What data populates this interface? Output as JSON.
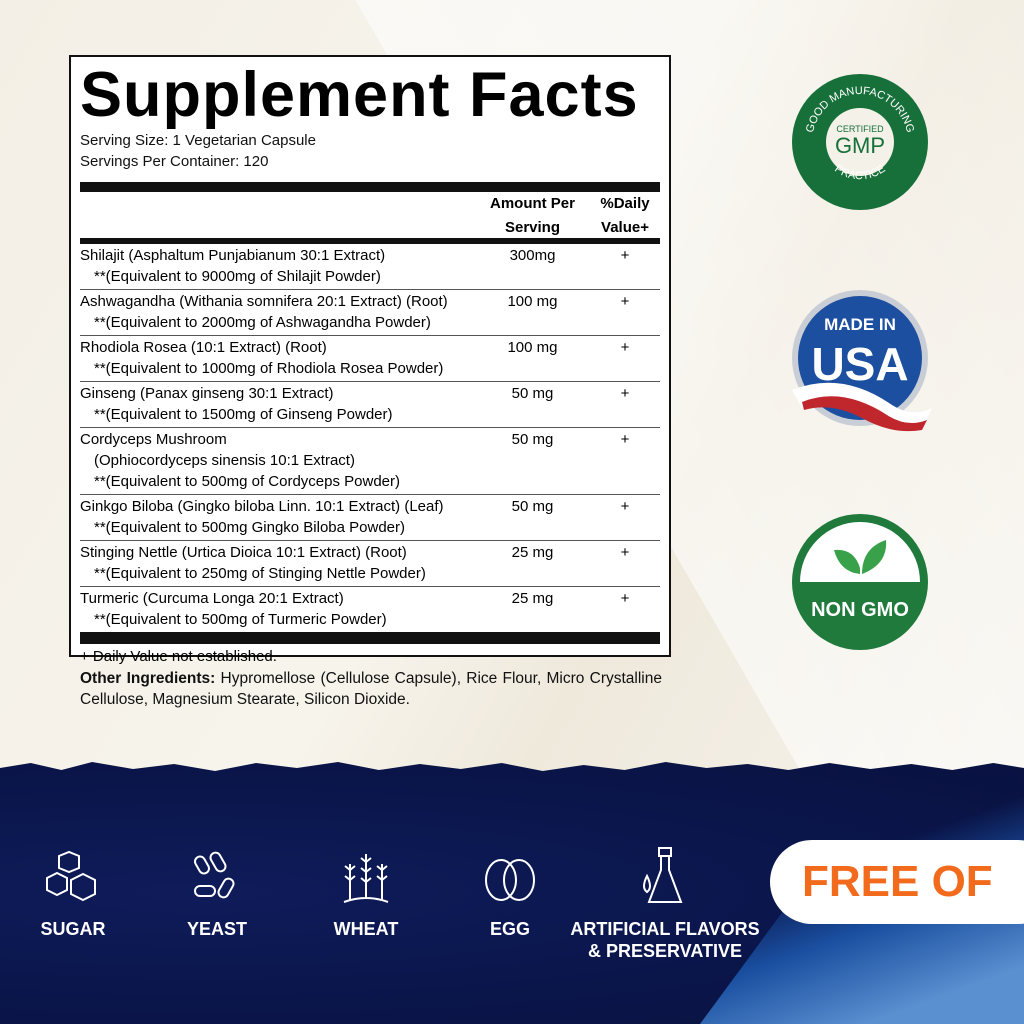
{
  "label": {
    "title": "Supplement Facts",
    "serving_size": "Serving Size: 1 Vegetarian Capsule",
    "servings_per_container": "Servings Per Container: 120",
    "header": {
      "amount_1": "Amount Per",
      "amount_2": "Serving",
      "dv_1": "%Daily",
      "dv_2": "Value+"
    },
    "rows": [
      {
        "lines": [
          "Shilajit (Asphaltum Punjabianum 30:1 Extract)",
          "**(Equivalent to 9000mg of Shilajit Powder)"
        ],
        "amount": "300mg",
        "dv": "+"
      },
      {
        "lines": [
          "Ashwagandha (Withania somnifera 20:1 Extract) (Root)",
          "**(Equivalent to 2000mg of Ashwagandha Powder)"
        ],
        "amount": "100 mg",
        "dv": "+"
      },
      {
        "lines": [
          "Rhodiola Rosea (10:1 Extract) (Root)",
          "**(Equivalent to 1000mg of Rhodiola Rosea Powder)"
        ],
        "amount": "100 mg",
        "dv": "+"
      },
      {
        "lines": [
          "Ginseng (Panax ginseng 30:1 Extract)",
          "**(Equivalent to 1500mg of Ginseng Powder)"
        ],
        "amount": "50 mg",
        "dv": "+"
      },
      {
        "lines": [
          "Cordyceps Mushroom",
          "(Ophiocordyceps sinensis 10:1 Extract)",
          "**(Equivalent to 500mg of Cordyceps Powder)"
        ],
        "amount": "50 mg",
        "dv": "+"
      },
      {
        "lines": [
          "Ginkgo Biloba (Gingko biloba Linn. 10:1 Extract) (Leaf)",
          "**(Equivalent to 500mg Gingko Biloba Powder)"
        ],
        "amount": "50 mg",
        "dv": "+"
      },
      {
        "lines": [
          "Stinging Nettle (Urtica Dioica 10:1 Extract) (Root)",
          "**(Equivalent to 250mg of Stinging Nettle Powder)"
        ],
        "amount": "25 mg",
        "dv": "+"
      },
      {
        "lines": [
          "Turmeric (Curcuma Longa 20:1 Extract)",
          "**(Equivalent to 500mg of Turmeric Powder)"
        ],
        "amount": "25 mg",
        "dv": "+"
      }
    ],
    "footnote": "+ Daily Value not established."
  },
  "other_ingredients": {
    "label": "Other Ingredients:",
    "text": " Hypromellose (Cellulose Capsule), Rice Flour, Micro Crystalline Cellulose, Magnesium Stearate, Silicon Dioxide."
  },
  "badges": {
    "gmp": {
      "ring_top": "GOOD MANUFACTURING",
      "ring_bottom": "PRACTICE",
      "small": "CERTIFIED",
      "big": "GMP",
      "color": "#17703a"
    },
    "usa": {
      "top": "MADE IN",
      "big": "USA",
      "color": "#1d4fa0"
    },
    "nongmo": {
      "text": "NON GMO",
      "color": "#1f7a3c"
    }
  },
  "free_of": {
    "title": "FREE OF",
    "title_color": "#f26b1d",
    "items": [
      {
        "label": "SUGAR",
        "icon": "sugar-cubes-icon"
      },
      {
        "label": "YEAST",
        "icon": "yeast-icon"
      },
      {
        "label": "WHEAT",
        "icon": "wheat-icon"
      },
      {
        "label": "EGG",
        "icon": "egg-icon"
      },
      {
        "label": "ARTIFICIAL FLAVORS",
        "label2": "& PRESERVATIVE",
        "icon": "flask-drop-icon"
      }
    ]
  }
}
